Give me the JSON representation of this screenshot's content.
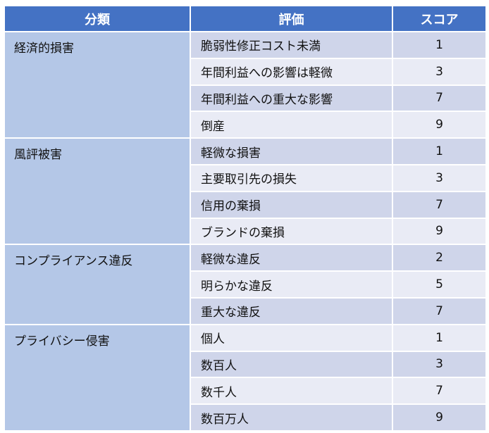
{
  "table": {
    "headers": {
      "category": "分類",
      "evaluation": "評価",
      "score": "スコア"
    },
    "groups": [
      {
        "category": "経済的損害",
        "rows": [
          {
            "evaluation": "脆弱性修正コスト未満",
            "score": "1"
          },
          {
            "evaluation": "年間利益への影響は軽微",
            "score": "3"
          },
          {
            "evaluation": "年間利益への重大な影響",
            "score": "7"
          },
          {
            "evaluation": "倒産",
            "score": "9"
          }
        ]
      },
      {
        "category": "風評被害",
        "rows": [
          {
            "evaluation": "軽微な損害",
            "score": "1"
          },
          {
            "evaluation": "主要取引先の損失",
            "score": "3"
          },
          {
            "evaluation": "信用の棄損",
            "score": "7"
          },
          {
            "evaluation": "ブランドの棄損",
            "score": "9"
          }
        ]
      },
      {
        "category": "コンプライアンス違反",
        "rows": [
          {
            "evaluation": "軽微な違反",
            "score": "2"
          },
          {
            "evaluation": "明らかな違反",
            "score": "5"
          },
          {
            "evaluation": "重大な違反",
            "score": "7"
          }
        ]
      },
      {
        "category": "プライバシー侵害",
        "rows": [
          {
            "evaluation": "個人",
            "score": "1"
          },
          {
            "evaluation": "数百人",
            "score": "3"
          },
          {
            "evaluation": "数千人",
            "score": "7"
          },
          {
            "evaluation": "数百万人",
            "score": "9"
          }
        ]
      }
    ]
  }
}
